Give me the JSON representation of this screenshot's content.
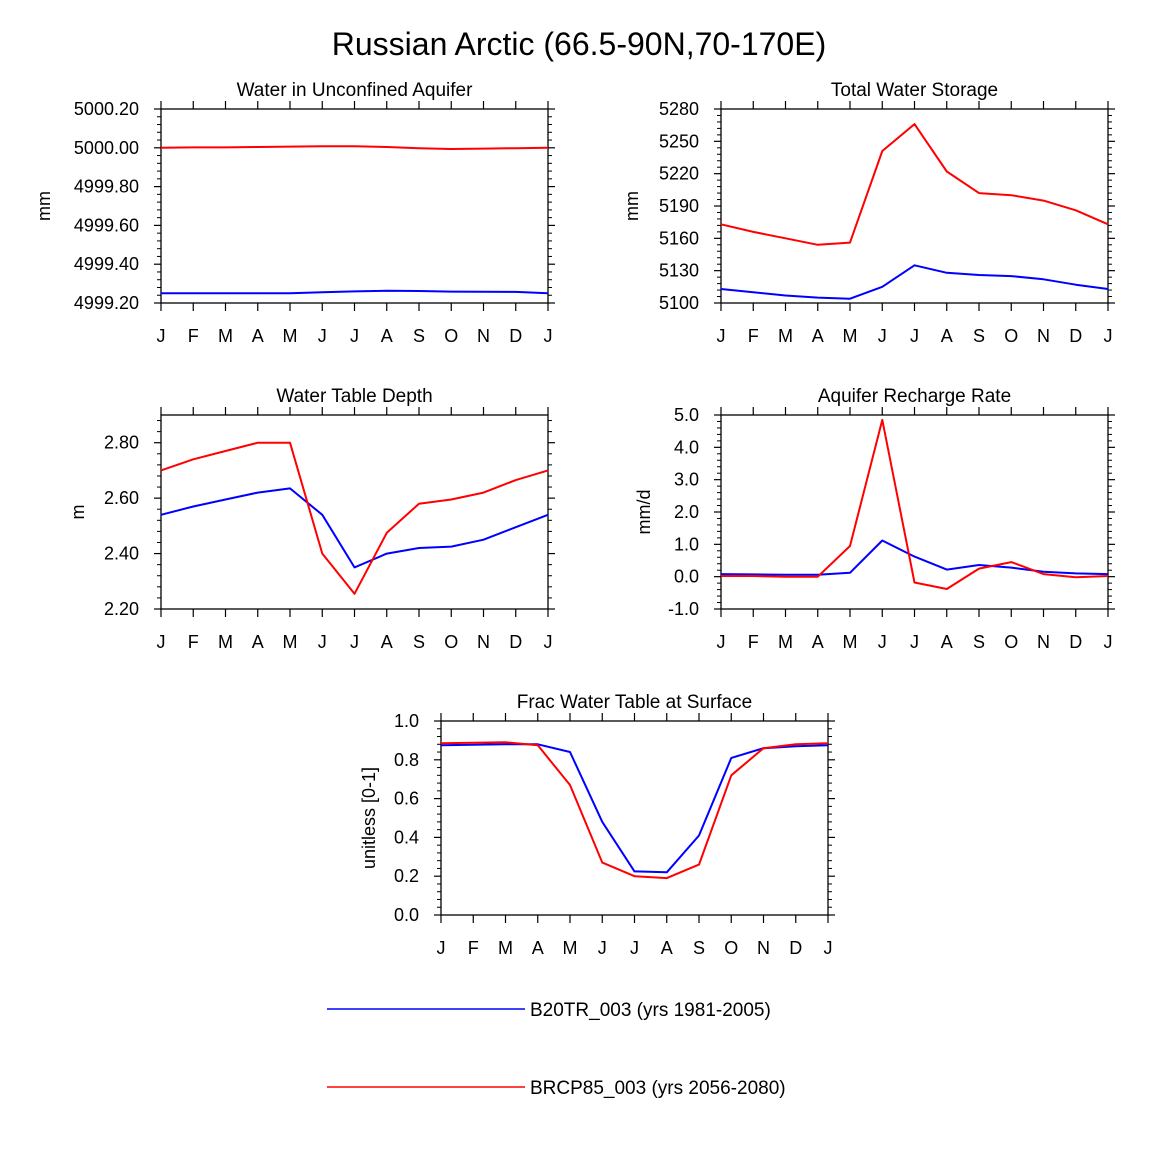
{
  "title": "Russian Arctic (66.5-90N,70-170E)",
  "colors": {
    "hist": "#0000ff",
    "future": "#ff0000",
    "axis": "#000000"
  },
  "legend": [
    {
      "label": "B20TR_003 (yrs 1981-2005)",
      "color": "#0000ff",
      "series": "hist"
    },
    {
      "label": "BRCP85_003 (yrs 2056-2080)",
      "color": "#ff0000",
      "series": "future"
    }
  ],
  "chart_data": [
    {
      "id": "unconfined",
      "type": "line",
      "title": "Water in Unconfined Aquifer",
      "ylabel": "mm",
      "xlabel": "",
      "categories": [
        "J",
        "F",
        "M",
        "A",
        "M",
        "J",
        "J",
        "A",
        "S",
        "O",
        "N",
        "D",
        "J"
      ],
      "ylim": [
        4999.2,
        5000.2
      ],
      "yticks": [
        4999.2,
        4999.4,
        4999.6,
        4999.8,
        5000.0,
        5000.2
      ],
      "ytick_labels": [
        "4999.20",
        "4999.40",
        "4999.60",
        "4999.80",
        "5000.00",
        "5000.20"
      ],
      "series": [
        {
          "name": "B20TR_003 (yrs 1981-2005)",
          "key": "hist",
          "values": [
            4999.25,
            4999.25,
            4999.25,
            4999.25,
            4999.25,
            4999.255,
            4999.26,
            4999.263,
            4999.262,
            4999.259,
            4999.258,
            4999.257,
            4999.25
          ]
        },
        {
          "name": "BRCP85_003 (yrs 2056-2080)",
          "key": "future",
          "values": [
            5000.0,
            5000.002,
            5000.002,
            5000.004,
            5000.006,
            5000.008,
            5000.008,
            5000.004,
            4999.998,
            4999.994,
            4999.996,
            4999.998,
            5000.0
          ]
        }
      ]
    },
    {
      "id": "tws",
      "type": "line",
      "title": "Total Water Storage",
      "ylabel": "mm",
      "xlabel": "",
      "categories": [
        "J",
        "F",
        "M",
        "A",
        "M",
        "J",
        "J",
        "A",
        "S",
        "O",
        "N",
        "D",
        "J"
      ],
      "ylim": [
        5100,
        5280
      ],
      "yticks": [
        5100,
        5130,
        5160,
        5190,
        5220,
        5250,
        5280
      ],
      "ytick_labels": [
        "5100",
        "5130",
        "5160",
        "5190",
        "5220",
        "5250",
        "5280"
      ],
      "series": [
        {
          "name": "B20TR_003 (yrs 1981-2005)",
          "key": "hist",
          "values": [
            5113,
            5110,
            5107,
            5105,
            5104,
            5115,
            5135,
            5128,
            5126,
            5125,
            5122,
            5117,
            5113
          ]
        },
        {
          "name": "BRCP85_003 (yrs 2056-2080)",
          "key": "future",
          "values": [
            5173,
            5166,
            5160,
            5154,
            5156,
            5241,
            5266,
            5222,
            5202,
            5200,
            5195,
            5186,
            5173
          ]
        }
      ]
    },
    {
      "id": "wtd",
      "type": "line",
      "title": "Water Table Depth",
      "ylabel": "m",
      "xlabel": "",
      "categories": [
        "J",
        "F",
        "M",
        "A",
        "M",
        "J",
        "J",
        "A",
        "S",
        "O",
        "N",
        "D",
        "J"
      ],
      "ylim": [
        2.2,
        2.9
      ],
      "yticks": [
        2.2,
        2.4,
        2.6,
        2.8
      ],
      "ytick_labels": [
        "2.20",
        "2.40",
        "2.60",
        "2.80"
      ],
      "series": [
        {
          "name": "B20TR_003 (yrs 1981-2005)",
          "key": "hist",
          "values": [
            2.54,
            2.57,
            2.595,
            2.62,
            2.635,
            2.54,
            2.35,
            2.4,
            2.42,
            2.425,
            2.45,
            2.495,
            2.54
          ]
        },
        {
          "name": "BRCP85_003 (yrs 2056-2080)",
          "key": "future",
          "values": [
            2.7,
            2.74,
            2.77,
            2.8,
            2.8,
            2.4,
            2.255,
            2.475,
            2.58,
            2.595,
            2.62,
            2.665,
            2.7
          ]
        }
      ]
    },
    {
      "id": "recharge",
      "type": "line",
      "title": "Aquifer Recharge Rate",
      "ylabel": "mm/d",
      "xlabel": "",
      "categories": [
        "J",
        "F",
        "M",
        "A",
        "M",
        "J",
        "J",
        "A",
        "S",
        "O",
        "N",
        "D",
        "J"
      ],
      "ylim": [
        -1.0,
        5.0
      ],
      "yticks": [
        -1,
        0,
        1,
        2,
        3,
        4,
        5
      ],
      "ytick_labels": [
        "-1.0",
        "0.0",
        "1.0",
        "2.0",
        "3.0",
        "4.0",
        "5.0"
      ],
      "series": [
        {
          "name": "B20TR_003 (yrs 1981-2005)",
          "key": "hist",
          "values": [
            0.08,
            0.07,
            0.06,
            0.06,
            0.12,
            1.12,
            0.62,
            0.22,
            0.36,
            0.28,
            0.15,
            0.1,
            0.08
          ]
        },
        {
          "name": "BRCP85_003 (yrs 2056-2080)",
          "key": "future",
          "values": [
            0.02,
            0.02,
            0.0,
            0.0,
            0.95,
            4.85,
            -0.18,
            -0.38,
            0.25,
            0.45,
            0.08,
            -0.02,
            0.02
          ]
        }
      ]
    },
    {
      "id": "frac",
      "type": "line",
      "title": "Frac Water Table at Surface",
      "ylabel": "unitless [0-1]",
      "xlabel": "",
      "categories": [
        "J",
        "F",
        "M",
        "A",
        "M",
        "J",
        "J",
        "A",
        "S",
        "O",
        "N",
        "D",
        "J"
      ],
      "ylim": [
        0.0,
        1.0
      ],
      "yticks": [
        0.0,
        0.2,
        0.4,
        0.6,
        0.8,
        1.0
      ],
      "ytick_labels": [
        "0.0",
        "0.2",
        "0.4",
        "0.6",
        "0.8",
        "1.0"
      ],
      "series": [
        {
          "name": "B20TR_003 (yrs 1981-2005)",
          "key": "hist",
          "values": [
            0.875,
            0.878,
            0.88,
            0.88,
            0.84,
            0.48,
            0.225,
            0.22,
            0.41,
            0.81,
            0.86,
            0.87,
            0.875
          ]
        },
        {
          "name": "BRCP85_003 (yrs 2056-2080)",
          "key": "future",
          "values": [
            0.885,
            0.888,
            0.89,
            0.875,
            0.67,
            0.27,
            0.2,
            0.19,
            0.26,
            0.72,
            0.86,
            0.88,
            0.885
          ]
        }
      ]
    }
  ]
}
